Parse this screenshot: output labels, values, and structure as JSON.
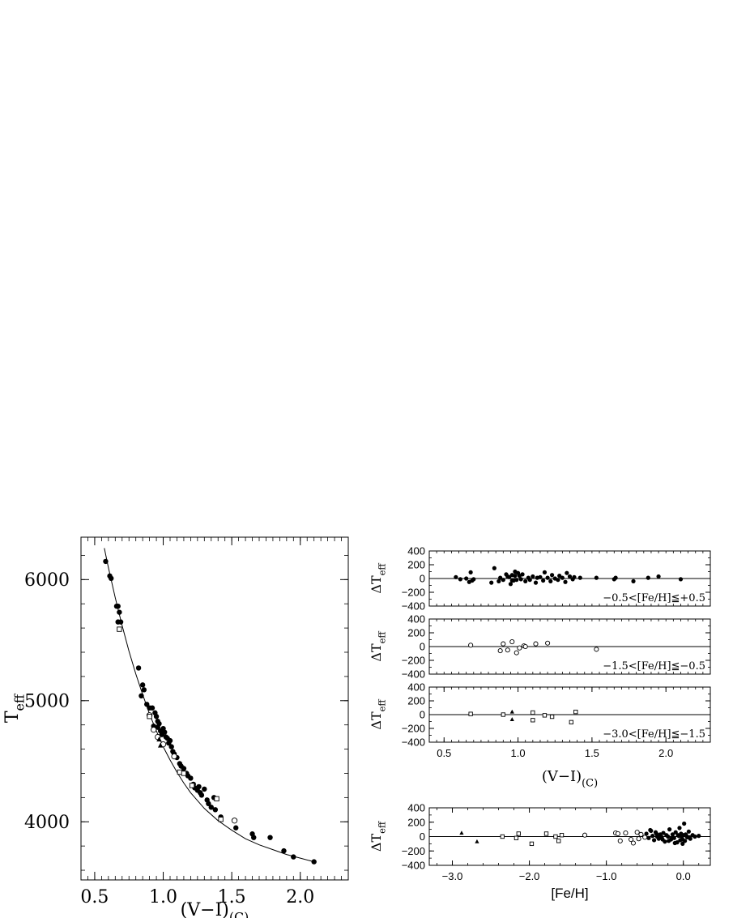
{
  "chart_data": [
    {
      "id": "main",
      "type": "scatter",
      "xlabel": "(V−I)",
      "xlabel_sub": "(C)",
      "ylabel": "T",
      "ylabel_sub": "eff",
      "xlim": [
        0.4,
        2.35
      ],
      "ylim": [
        3520,
        6350
      ],
      "xticks": [
        0.5,
        1.0,
        1.5,
        2.0
      ],
      "xtick_labels": [
        "0.5",
        "1.0",
        "1.5",
        "2.0"
      ],
      "yticks": [
        4000,
        5000,
        6000
      ],
      "ytick_labels": [
        "4000",
        "5000",
        "6000"
      ],
      "fit_curve": {
        "x": [
          0.57,
          0.6,
          0.65,
          0.7,
          0.75,
          0.8,
          0.85,
          0.9,
          0.95,
          1.0,
          1.05,
          1.1,
          1.15,
          1.2,
          1.3,
          1.4,
          1.5,
          1.6,
          1.7,
          1.8,
          1.9,
          2.0,
          2.1
        ],
        "y": [
          6260,
          6100,
          5850,
          5620,
          5410,
          5220,
          5050,
          4890,
          4750,
          4620,
          4510,
          4410,
          4320,
          4240,
          4110,
          4010,
          3930,
          3860,
          3810,
          3770,
          3730,
          3700,
          3670
        ]
      },
      "series": [
        {
          "marker": "filled-circle",
          "x": [
            0.58,
            0.61,
            0.62,
            0.66,
            0.67,
            0.68,
            0.69,
            0.67,
            0.82,
            0.85,
            0.86,
            0.84,
            0.88,
            0.9,
            0.92,
            0.94,
            0.95,
            0.96,
            0.97,
            0.98,
            0.99,
            1.0,
            1.01,
            1.02,
            1.03,
            1.05,
            1.07,
            1.08,
            1.1,
            1.12,
            1.13,
            1.15,
            1.17,
            1.18,
            1.2,
            1.22,
            1.23,
            1.25,
            1.27,
            1.28,
            1.3,
            1.32,
            1.33,
            1.35,
            1.37,
            1.38,
            1.42,
            1.53,
            1.65,
            1.66,
            1.78,
            1.88,
            1.95,
            2.1,
            0.96,
            0.99,
            1.04,
            1.06,
            0.93,
            1.26
          ],
          "y": [
            6150,
            6030,
            6010,
            5780,
            5780,
            5730,
            5650,
            5650,
            5270,
            5130,
            5090,
            5040,
            4970,
            4940,
            4940,
            4900,
            4870,
            4830,
            4810,
            4750,
            4720,
            4770,
            4740,
            4700,
            4690,
            4670,
            4580,
            4560,
            4530,
            4480,
            4460,
            4440,
            4400,
            4380,
            4360,
            4310,
            4280,
            4260,
            4240,
            4220,
            4270,
            4180,
            4150,
            4120,
            4200,
            4100,
            4040,
            3950,
            3900,
            3870,
            3870,
            3760,
            3710,
            3670,
            4780,
            4740,
            4650,
            4620,
            4790,
            4290
          ]
        },
        {
          "marker": "open-circle",
          "x": [
            0.9,
            0.93,
            0.96,
            1.0,
            1.08,
            1.52
          ],
          "y": [
            4880,
            4760,
            4700,
            4640,
            4540,
            4010
          ]
        },
        {
          "marker": "open-square",
          "x": [
            0.68,
            0.9,
            1.12,
            1.15,
            1.21,
            1.39,
            1.42
          ],
          "y": [
            5590,
            4870,
            4410,
            4400,
            4300,
            4190,
            4020
          ]
        },
        {
          "marker": "filled-triangle",
          "x": [
            0.97,
            0.98
          ],
          "y": [
            4680,
            4630
          ]
        }
      ]
    },
    {
      "id": "resid1",
      "type": "scatter",
      "annotation": "−0.5<[Fe/H]≦+0.5",
      "ylabel": "ΔT",
      "ylabel_sub": "eff",
      "xlim": [
        0.4,
        2.3
      ],
      "ylim": [
        -400,
        400
      ],
      "yticks": [
        -400,
        -200,
        0,
        200,
        400
      ],
      "ytick_labels": [
        "−400",
        "−200",
        "0",
        "200",
        "400"
      ],
      "series": [
        {
          "marker": "filled-circle",
          "x": [
            0.58,
            0.61,
            0.65,
            0.67,
            0.68,
            0.69,
            0.7,
            0.82,
            0.84,
            0.87,
            0.88,
            0.9,
            0.92,
            0.93,
            0.95,
            0.96,
            0.97,
            0.98,
            0.99,
            1.0,
            1.01,
            1.02,
            1.03,
            1.05,
            1.07,
            1.08,
            1.1,
            1.12,
            1.13,
            1.15,
            1.17,
            1.18,
            1.2,
            1.22,
            1.23,
            1.25,
            1.27,
            1.28,
            1.3,
            1.32,
            1.33,
            1.35,
            1.37,
            1.38,
            1.42,
            1.53,
            1.65,
            1.66,
            1.78,
            1.88,
            1.95,
            2.1,
            0.94,
            0.96,
            0.98
          ],
          "y": [
            20,
            -10,
            0,
            -50,
            90,
            -30,
            -10,
            -60,
            150,
            -40,
            10,
            -20,
            60,
            30,
            -80,
            50,
            -30,
            100,
            -20,
            80,
            40,
            -10,
            60,
            -40,
            10,
            -20,
            30,
            -60,
            10,
            20,
            -30,
            90,
            10,
            -40,
            50,
            0,
            -20,
            40,
            10,
            -50,
            80,
            30,
            -10,
            20,
            10,
            10,
            -10,
            10,
            -40,
            10,
            30,
            -10,
            20,
            -30,
            40
          ]
        }
      ]
    },
    {
      "id": "resid2",
      "type": "scatter",
      "annotation": "−1.5<[Fe/H]≦−0.5",
      "ylabel": "ΔT",
      "ylabel_sub": "eff",
      "xlim": [
        0.4,
        2.3
      ],
      "ylim": [
        -400,
        400
      ],
      "yticks": [
        -400,
        -200,
        0,
        200,
        400
      ],
      "ytick_labels": [
        "−400",
        "−200",
        "0",
        "200",
        "400"
      ],
      "series": [
        {
          "marker": "open-circle",
          "x": [
            0.68,
            0.88,
            0.9,
            0.93,
            0.96,
            0.99,
            1.01,
            1.04,
            1.05,
            1.12,
            1.2,
            1.53
          ],
          "y": [
            20,
            -60,
            40,
            -50,
            70,
            -90,
            -20,
            10,
            0,
            40,
            50,
            -40
          ]
        }
      ]
    },
    {
      "id": "resid3",
      "type": "scatter",
      "annotation": "−3.0<[Fe/H]≦−1.5",
      "ylabel": "ΔT",
      "ylabel_sub": "eff",
      "xlabel": "(V−I)",
      "xlabel_sub": "(C)",
      "xlim": [
        0.4,
        2.3
      ],
      "ylim": [
        -400,
        400
      ],
      "xticks": [
        0.5,
        1.0,
        1.5,
        2.0
      ],
      "xtick_labels": [
        "0.5",
        "1.0",
        "1.5",
        "2.0"
      ],
      "yticks": [
        -400,
        -200,
        0,
        200,
        400
      ],
      "ytick_labels": [
        "−400",
        "−200",
        "0",
        "200",
        "400"
      ],
      "series": [
        {
          "marker": "open-square",
          "x": [
            0.68,
            0.9,
            1.1,
            1.1,
            1.18,
            1.23,
            1.36,
            1.39
          ],
          "y": [
            10,
            0,
            30,
            -80,
            -10,
            -30,
            -110,
            40
          ]
        },
        {
          "marker": "filled-triangle",
          "x": [
            0.96,
            0.96
          ],
          "y": [
            40,
            -70
          ]
        }
      ]
    },
    {
      "id": "resid_feh",
      "type": "scatter",
      "ylabel": "ΔT",
      "ylabel_sub": "eff",
      "xlabel": "[Fe/H]",
      "xlim": [
        -3.3,
        0.35
      ],
      "ylim": [
        -400,
        400
      ],
      "xticks": [
        -3.0,
        -2.0,
        -1.0,
        0.0
      ],
      "xtick_labels": [
        "−3.0",
        "−2.0",
        "−1.0",
        "0.0"
      ],
      "yticks": [
        -400,
        -200,
        0,
        200,
        400
      ],
      "ytick_labels": [
        "−400",
        "−200",
        "0",
        "200",
        "400"
      ],
      "series": [
        {
          "marker": "filled-triangle",
          "x": [
            -2.88,
            -2.68
          ],
          "y": [
            50,
            -70
          ]
        },
        {
          "marker": "open-square",
          "x": [
            -2.35,
            -2.17,
            -2.14,
            -1.97,
            -1.78,
            -1.66,
            -1.62,
            -1.58
          ],
          "y": [
            0,
            -20,
            40,
            -100,
            40,
            0,
            -60,
            20
          ]
        },
        {
          "marker": "open-circle",
          "x": [
            -1.28,
            -0.88,
            -0.85,
            -0.82,
            -0.75,
            -0.68,
            -0.65,
            -0.6,
            -0.58,
            -0.55,
            -0.5
          ],
          "y": [
            20,
            50,
            40,
            -60,
            50,
            -40,
            -90,
            60,
            -30,
            30,
            -10
          ]
        },
        {
          "marker": "filled-circle",
          "x": [
            -0.48,
            -0.45,
            -0.43,
            -0.4,
            -0.38,
            -0.36,
            -0.34,
            -0.32,
            -0.3,
            -0.28,
            -0.26,
            -0.24,
            -0.22,
            -0.2,
            -0.18,
            -0.16,
            -0.14,
            -0.12,
            -0.1,
            -0.08,
            -0.06,
            -0.05,
            -0.04,
            -0.03,
            -0.02,
            -0.01,
            0.0,
            0.01,
            0.02,
            0.03,
            0.05,
            0.07,
            0.09,
            0.12,
            0.15,
            0.2,
            -0.42,
            -0.35,
            -0.27,
            -0.19,
            -0.11,
            -0.07,
            -0.01,
            0.04,
            -0.3,
            -0.15,
            0.08
          ],
          "y": [
            40,
            -20,
            90,
            10,
            -50,
            60,
            0,
            -30,
            30,
            -10,
            50,
            -70,
            20,
            0,
            100,
            -40,
            30,
            -20,
            60,
            -80,
            10,
            120,
            -50,
            40,
            0,
            -100,
            20,
            180,
            -60,
            30,
            -10,
            70,
            -30,
            20,
            0,
            10,
            80,
            40,
            -40,
            -60,
            -90,
            20,
            -40,
            10,
            0,
            -20,
            -10
          ]
        }
      ]
    }
  ]
}
